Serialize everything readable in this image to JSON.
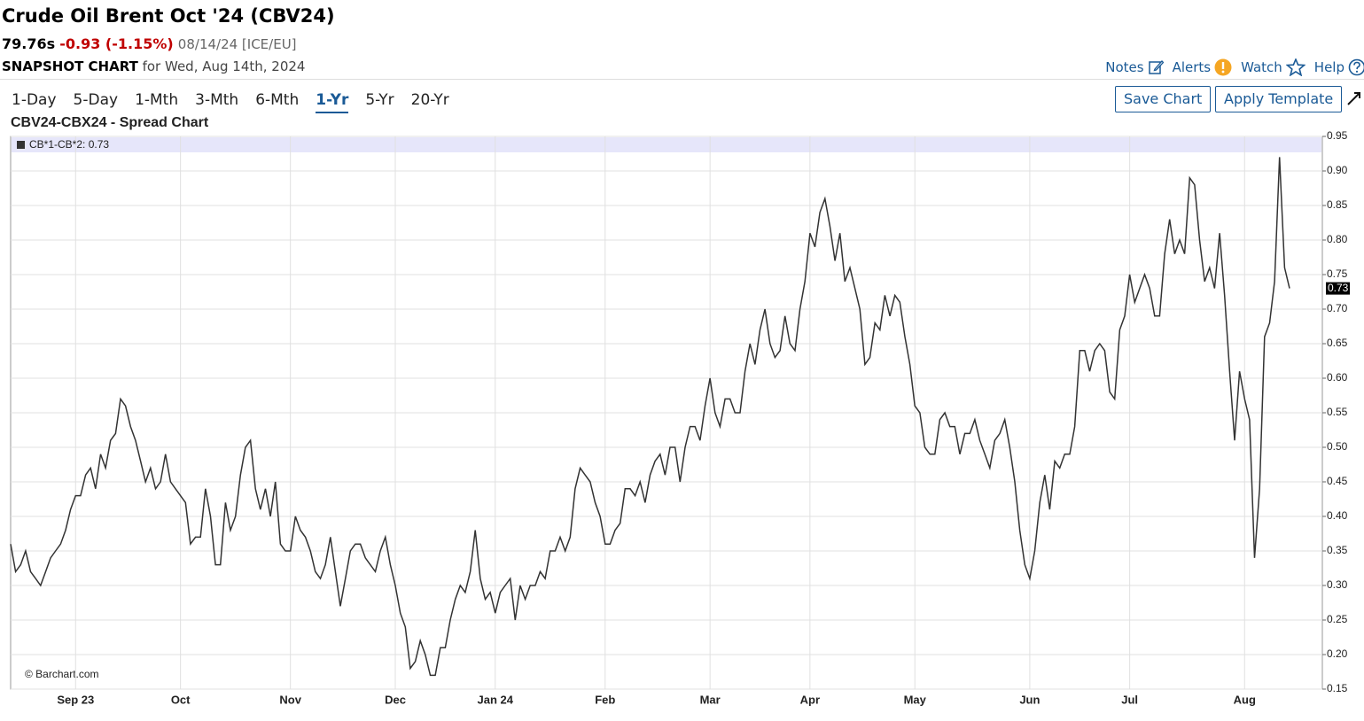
{
  "header": {
    "title": "Crude Oil Brent Oct '24 (CBV24)",
    "price": "79.76s",
    "change": "-0.93 (-1.15%)",
    "date": "08/14/24 [ICE/EU]",
    "snapshot": "SNAPSHOT CHART",
    "snapshot_date": "for Wed, Aug 14th, 2024"
  },
  "links": [
    "Notes",
    "Alerts",
    "Watch",
    "Help"
  ],
  "periods": [
    "1-Day",
    "5-Day",
    "1-Mth",
    "3-Mth",
    "6-Mth",
    "1-Yr",
    "5-Yr",
    "20-Yr"
  ],
  "buttons": [
    "Save Chart",
    "Apply Template"
  ],
  "chart_data": {
    "type": "line",
    "title": "CBV24-CBX24 - Spread Chart",
    "watermark": "© Barchart.com",
    "categories": [
      null,
      null,
      null,
      null,
      null,
      null,
      null,
      null,
      null,
      null,
      null,
      null,
      null,
      "Sep 23",
      null,
      null,
      null,
      null,
      null,
      null,
      null,
      null,
      null,
      null,
      null,
      null,
      null,
      null,
      null,
      null,
      null,
      null,
      null,
      null,
      "Oct",
      null,
      null,
      null,
      null,
      null,
      null,
      null,
      null,
      null,
      null,
      null,
      null,
      null,
      null,
      null,
      null,
      null,
      null,
      null,
      null,
      null,
      "Nov",
      null,
      null,
      null,
      null,
      null,
      null,
      null,
      null,
      null,
      null,
      null,
      null,
      null,
      null,
      null,
      null,
      null,
      null,
      null,
      null,
      "Dec",
      null,
      null,
      null,
      null,
      null,
      null,
      null,
      null,
      null,
      null,
      null,
      null,
      null,
      null,
      null,
      null,
      null,
      null,
      null,
      "Jan 24",
      null,
      null,
      null,
      null,
      null,
      null,
      null,
      null,
      null,
      null,
      null,
      null,
      null,
      null,
      null,
      null,
      null,
      null,
      null,
      null,
      null,
      "Feb",
      null,
      null,
      null,
      null,
      null,
      null,
      null,
      null,
      null,
      null,
      null,
      null,
      null,
      null,
      null,
      null,
      null,
      null,
      null,
      null,
      "Mar",
      null,
      null,
      null,
      null,
      null,
      null,
      null,
      null,
      null,
      null,
      null,
      null,
      null,
      null,
      null,
      null,
      null,
      null,
      null,
      "Apr",
      null,
      null,
      null,
      null,
      null,
      null,
      null,
      null,
      null,
      null,
      null,
      null,
      null,
      null,
      null,
      null,
      null,
      null,
      null,
      null,
      "May",
      null,
      null,
      null,
      null,
      null,
      null,
      null,
      null,
      null,
      null,
      null,
      null,
      null,
      null,
      null,
      null,
      null,
      null,
      null,
      null,
      null,
      null,
      "Jun",
      null,
      null,
      null,
      null,
      null,
      null,
      null,
      null,
      null,
      null,
      null,
      null,
      null,
      null,
      null,
      null,
      null,
      null,
      null,
      "Jul",
      null,
      null,
      null,
      null,
      null,
      null,
      null,
      null,
      null,
      null,
      null,
      null,
      null,
      null,
      null,
      null,
      null,
      null,
      null,
      null,
      null,
      null,
      "Aug",
      null,
      null,
      null,
      null,
      null,
      null,
      null,
      null,
      null
    ],
    "series": [
      {
        "name": "CB*1-CB*2: 0.73",
        "color": "#333333",
        "values": [
          0.36,
          0.32,
          0.33,
          0.35,
          0.32,
          0.31,
          0.3,
          0.32,
          0.34,
          0.35,
          0.36,
          0.38,
          0.41,
          0.43,
          0.43,
          0.46,
          0.47,
          0.44,
          0.49,
          0.47,
          0.51,
          0.52,
          0.57,
          0.56,
          0.53,
          0.51,
          0.48,
          0.45,
          0.47,
          0.44,
          0.45,
          0.49,
          0.45,
          0.44,
          0.43,
          0.42,
          0.36,
          0.37,
          0.37,
          0.44,
          0.4,
          0.33,
          0.33,
          0.42,
          0.38,
          0.4,
          0.46,
          0.5,
          0.51,
          0.44,
          0.41,
          0.44,
          0.4,
          0.45,
          0.36,
          0.35,
          0.35,
          0.4,
          0.38,
          0.37,
          0.35,
          0.32,
          0.31,
          0.33,
          0.37,
          0.32,
          0.27,
          0.31,
          0.35,
          0.36,
          0.36,
          0.34,
          0.33,
          0.32,
          0.35,
          0.37,
          0.33,
          0.3,
          0.26,
          0.24,
          0.18,
          0.19,
          0.22,
          0.2,
          0.17,
          0.17,
          0.21,
          0.21,
          0.25,
          0.28,
          0.3,
          0.29,
          0.32,
          0.38,
          0.31,
          0.28,
          0.29,
          0.26,
          0.29,
          0.3,
          0.31,
          0.25,
          0.3,
          0.28,
          0.3,
          0.3,
          0.32,
          0.31,
          0.35,
          0.35,
          0.37,
          0.35,
          0.37,
          0.44,
          0.47,
          0.46,
          0.45,
          0.42,
          0.4,
          0.36,
          0.36,
          0.38,
          0.39,
          0.44,
          0.44,
          0.43,
          0.45,
          0.42,
          0.46,
          0.48,
          0.49,
          0.46,
          0.5,
          0.5,
          0.45,
          0.5,
          0.53,
          0.53,
          0.51,
          0.56,
          0.6,
          0.55,
          0.53,
          0.57,
          0.57,
          0.55,
          0.55,
          0.61,
          0.65,
          0.62,
          0.67,
          0.7,
          0.65,
          0.63,
          0.64,
          0.69,
          0.65,
          0.64,
          0.7,
          0.74,
          0.81,
          0.79,
          0.84,
          0.86,
          0.82,
          0.77,
          0.81,
          0.74,
          0.76,
          0.73,
          0.7,
          0.62,
          0.63,
          0.68,
          0.67,
          0.72,
          0.69,
          0.72,
          0.71,
          0.66,
          0.62,
          0.56,
          0.55,
          0.5,
          0.49,
          0.49,
          0.54,
          0.55,
          0.53,
          0.53,
          0.49,
          0.52,
          0.52,
          0.54,
          0.51,
          0.49,
          0.47,
          0.51,
          0.52,
          0.54,
          0.5,
          0.45,
          0.38,
          0.33,
          0.31,
          0.35,
          0.42,
          0.46,
          0.41,
          0.48,
          0.47,
          0.49,
          0.49,
          0.53,
          0.64,
          0.64,
          0.61,
          0.64,
          0.65,
          0.64,
          0.58,
          0.57,
          0.67,
          0.69,
          0.75,
          0.71,
          0.73,
          0.75,
          0.73,
          0.69,
          0.69,
          0.78,
          0.83,
          0.78,
          0.8,
          0.78,
          0.89,
          0.88,
          0.8,
          0.74,
          0.76,
          0.73,
          0.81,
          0.72,
          0.61,
          0.51,
          0.61,
          0.57,
          0.54,
          0.34,
          0.44,
          0.66,
          0.68,
          0.74,
          0.92,
          0.76,
          0.73
        ]
      }
    ],
    "ylim": [
      0.15,
      0.95
    ],
    "yticks": [
      0.15,
      {
        "value": 0.2,
        "label": "0.20"
      },
      0.25,
      {
        "value": 0.3,
        "label": "0.30"
      },
      0.35,
      {
        "value": 0.4,
        "label": "0.40"
      },
      0.45,
      {
        "value": 0.5,
        "label": "0.50"
      },
      0.55,
      {
        "value": 0.6,
        "label": "0.60"
      },
      0.65,
      {
        "value": 0.7,
        "label": "0.70"
      },
      0.75,
      {
        "value": 0.8,
        "label": "0.80"
      },
      0.85,
      {
        "value": 0.9,
        "label": "0.90"
      },
      0.95
    ],
    "grid": true,
    "legend": "top-left"
  }
}
